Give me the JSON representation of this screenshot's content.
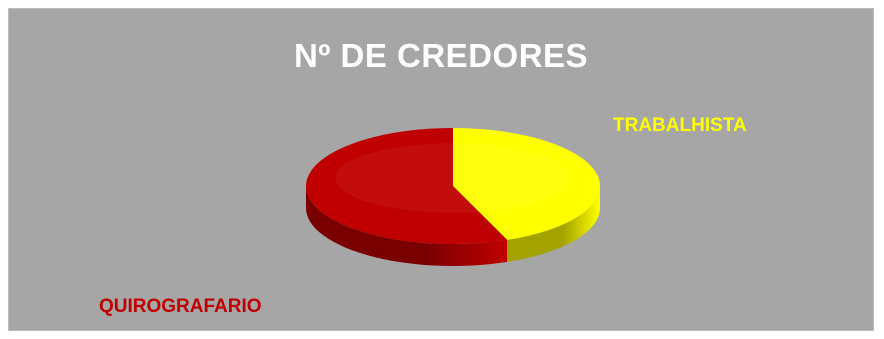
{
  "chart_data": {
    "type": "pie",
    "title": "Nº DE CREDORES",
    "slices": [
      {
        "label": "TRABALHISTA",
        "value": 44,
        "color": "#ffff00",
        "side_color": "#a3a300"
      },
      {
        "label": "QUIROGRAFARIO",
        "value": 56,
        "color": "#c00000",
        "side_color": "#7a0000"
      }
    ],
    "style": "3d",
    "background": "#a6a6a6",
    "title_color": "#ffffff",
    "legend": "none"
  }
}
